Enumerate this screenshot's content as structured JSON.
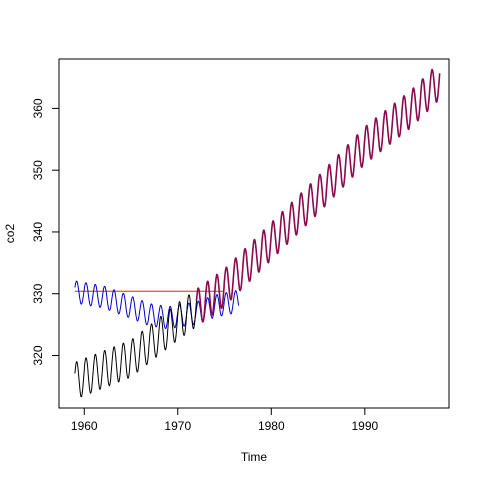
{
  "chart_data": {
    "type": "line",
    "title": "",
    "xlabel": "Time",
    "ylabel": "co2",
    "xlim": [
      1957.3,
      1999.0
    ],
    "ylim": [
      311.5,
      368.0
    ],
    "x_ticks": [
      1960,
      1970,
      1980,
      1990
    ],
    "y_ticks": [
      320,
      330,
      340,
      350,
      360
    ],
    "x_tick_labels": [
      "1960",
      "1970",
      "1980",
      "1990"
    ],
    "y_tick_labels": [
      "320",
      "330",
      "340",
      "350",
      "360"
    ],
    "grid": false,
    "legend": "none",
    "series": [
      {
        "color": "#000000",
        "role": "observed",
        "t_start": 1959.0,
        "t_end": 1998.0,
        "trend_knots": [
          [
            1959,
            315.9
          ],
          [
            1965,
            319.5
          ],
          [
            1970,
            325.5
          ],
          [
            1975,
            331.0
          ],
          [
            1980,
            338.5
          ],
          [
            1985,
            346.0
          ],
          [
            1990,
            354.0
          ],
          [
            1995,
            360.0
          ],
          [
            1998,
            364.5
          ]
        ],
        "seasonal_amplitude": 3.0
      },
      {
        "color": "#8b0a50",
        "role": "fitted",
        "t_start": 1972.0,
        "t_end": 1998.0,
        "trend_knots": [
          [
            1959,
            315.9
          ],
          [
            1965,
            319.5
          ],
          [
            1970,
            325.5
          ],
          [
            1975,
            331.0
          ],
          [
            1980,
            338.5
          ],
          [
            1985,
            346.0
          ],
          [
            1990,
            354.0
          ],
          [
            1995,
            360.0
          ],
          [
            1998,
            364.5
          ]
        ],
        "seasonal_amplitude": 3.0
      },
      {
        "color": "#0000cd",
        "role": "level",
        "t_start": 1959.0,
        "t_end": 1976.5,
        "trend_knots": [
          [
            1959,
            330.3
          ],
          [
            1962,
            329.5
          ],
          [
            1965,
            327.8
          ],
          [
            1967,
            326.6
          ],
          [
            1969,
            326.1
          ],
          [
            1972,
            326.9
          ],
          [
            1974,
            328.0
          ],
          [
            1976.5,
            328.8
          ]
        ],
        "seasonal_amplitude": 1.8
      },
      {
        "color": "#d62728",
        "role": "start",
        "t_start": 1959.0,
        "t_end": 1975.0,
        "trend_knots": [
          [
            1959,
            330.4
          ],
          [
            1975,
            330.4
          ]
        ],
        "seasonal_amplitude": 0.0
      }
    ]
  }
}
